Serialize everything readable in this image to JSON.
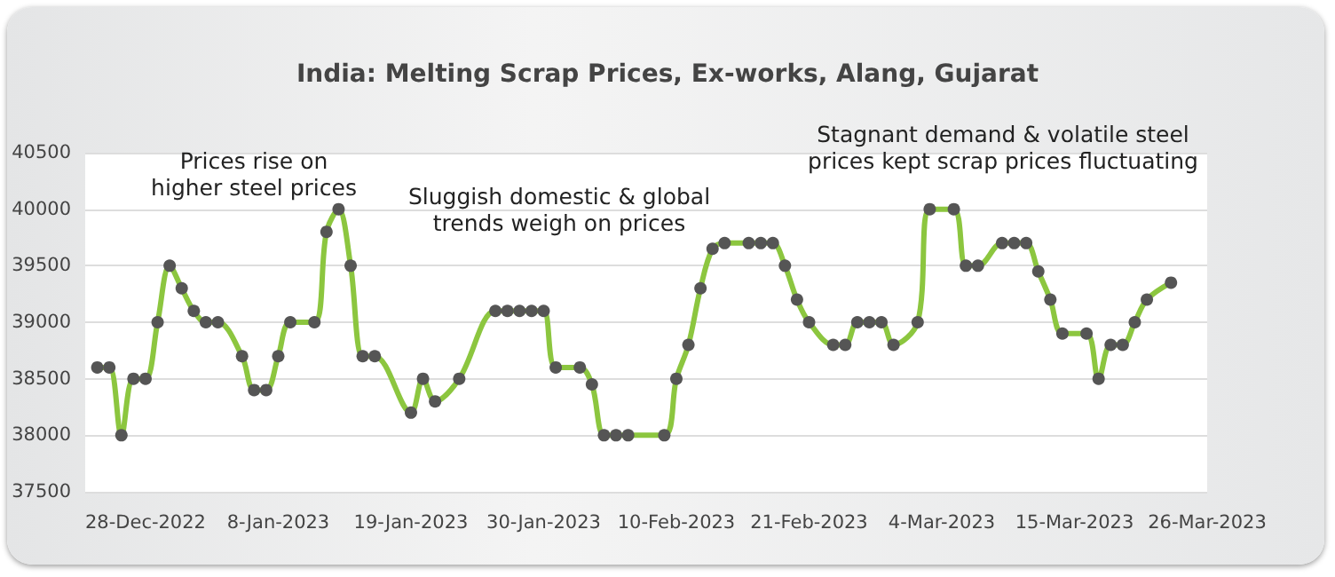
{
  "chart_data": {
    "type": "line",
    "title": "India: Melting Scrap Prices, Ex-works, Alang, Gujarat",
    "x": [
      "2022-12-24",
      "2022-12-25",
      "2022-12-26",
      "2022-12-27",
      "2022-12-28",
      "2022-12-29",
      "2022-12-30",
      "2022-12-31",
      "2023-01-01",
      "2023-01-02",
      "2023-01-03",
      "2023-01-05",
      "2023-01-06",
      "2023-01-07",
      "2023-01-08",
      "2023-01-09",
      "2023-01-11",
      "2023-01-12",
      "2023-01-13",
      "2023-01-14",
      "2023-01-15",
      "2023-01-16",
      "2023-01-19",
      "2023-01-20",
      "2023-01-21",
      "2023-01-23",
      "2023-01-26",
      "2023-01-27",
      "2023-01-28",
      "2023-01-29",
      "2023-01-30",
      "2023-01-31",
      "2023-02-02",
      "2023-02-03",
      "2023-02-04",
      "2023-02-05",
      "2023-02-06",
      "2023-02-09",
      "2023-02-10",
      "2023-02-11",
      "2023-02-12",
      "2023-02-13",
      "2023-02-14",
      "2023-02-16",
      "2023-02-17",
      "2023-02-18",
      "2023-02-19",
      "2023-02-20",
      "2023-02-21",
      "2023-02-23",
      "2023-02-24",
      "2023-02-25",
      "2023-02-26",
      "2023-02-27",
      "2023-02-28",
      "2023-03-02",
      "2023-03-03",
      "2023-03-05",
      "2023-03-06",
      "2023-03-07",
      "2023-03-09",
      "2023-03-10",
      "2023-03-11",
      "2023-03-12",
      "2023-03-13",
      "2023-03-14",
      "2023-03-16",
      "2023-03-17",
      "2023-03-18",
      "2023-03-19",
      "2023-03-20",
      "2023-03-21",
      "2023-03-23"
    ],
    "series": [
      {
        "color": "#8cc63f",
        "values": [
          38600,
          38600,
          38000,
          38500,
          38500,
          39000,
          39500,
          39300,
          39100,
          39000,
          39000,
          38700,
          38400,
          38400,
          38700,
          39000,
          39000,
          39800,
          40000,
          39500,
          38700,
          38700,
          38200,
          38500,
          38300,
          38500,
          39100,
          39100,
          39100,
          39100,
          39100,
          38600,
          38600,
          38450,
          38000,
          38000,
          38000,
          38000,
          38500,
          38800,
          39300,
          39650,
          39700,
          39700,
          39700,
          39700,
          39500,
          39200,
          39000,
          38800,
          38800,
          39000,
          39000,
          39000,
          38800,
          39000,
          40000,
          40000,
          39500,
          39500,
          39700,
          39700,
          39700,
          39450,
          39200,
          38900,
          38900,
          38500,
          38800,
          38800,
          39000,
          39200,
          39350
        ]
      }
    ],
    "xlim": [
      "2022-12-23",
      "2023-03-26"
    ],
    "xticks": [
      {
        "value": "2022-12-28",
        "label": "28-Dec-2022"
      },
      {
        "value": "2023-01-08",
        "label": "8-Jan-2023"
      },
      {
        "value": "2023-01-19",
        "label": "19-Jan-2023"
      },
      {
        "value": "2023-01-30",
        "label": "30-Jan-2023"
      },
      {
        "value": "2023-02-10",
        "label": "10-Feb-2023"
      },
      {
        "value": "2023-02-21",
        "label": "21-Feb-2023"
      },
      {
        "value": "2023-03-04",
        "label": "4-Mar-2023"
      },
      {
        "value": "2023-03-15",
        "label": "15-Mar-2023"
      },
      {
        "value": "2023-03-26",
        "label": "26-Mar-2023"
      }
    ],
    "ylim": [
      37500,
      40500
    ],
    "yticks": [
      37500,
      38000,
      38500,
      39000,
      39500,
      40000,
      40500
    ],
    "annotations": [
      "Prices rise on\nhigher steel prices",
      "Sluggish domestic & global\ntrends weigh on prices",
      "Stagnant demand & volatile steel\nprices kept scrap prices fluctuating"
    ],
    "grid": "y",
    "marker": "circle",
    "line_style": "solid"
  }
}
